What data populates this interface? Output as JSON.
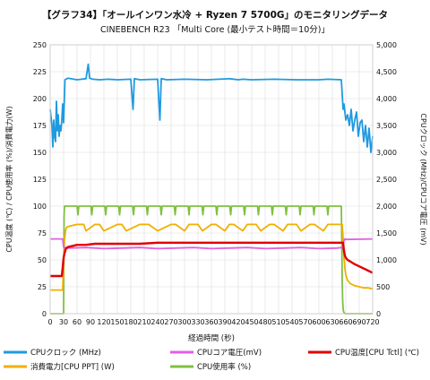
{
  "chart_data": {
    "type": "line",
    "title": "【グラフ34】「オールインワン水冷 + Ryzen 7 5700G」のモニタリングデータ",
    "subtitle": "CINEBENCH R23 「Multi Core (最小テスト時間＝10分)」",
    "xlabel": "経過時間 (秒)",
    "ylabel_left": "CPU温度 (℃) / CPU使用率 (%)/消費電力(W)",
    "ylabel_right": "CPUクロック (MHz)/CPUコア電圧 (mV)",
    "x_ticks": [
      "0",
      "30",
      "60",
      "90",
      "120",
      "150",
      "180",
      "210",
      "240",
      "270",
      "300",
      "330",
      "360",
      "390",
      "420",
      "450",
      "480",
      "510",
      "540",
      "570",
      "600",
      "630",
      "660",
      "690",
      "720"
    ],
    "y_left_ticks": [
      "0",
      "25",
      "50",
      "75",
      "100",
      "125",
      "150",
      "175",
      "200",
      "225",
      "250"
    ],
    "y_right_ticks": [
      "0",
      "500",
      "1,000",
      "1,500",
      "2,000",
      "2,500",
      "3,000",
      "3,500",
      "4,000",
      "4,500",
      "5,000"
    ],
    "xlim": [
      0,
      720
    ],
    "ylim_left": [
      0,
      250
    ],
    "ylim_right": [
      0,
      5000
    ],
    "grid": true,
    "legend_position": "bottom",
    "series": [
      {
        "name": "CPUクロック (MHz)",
        "axis": "right",
        "color": "#1f9ae0",
        "x": [
          0,
          4,
          6,
          8,
          10,
          12,
          14,
          16,
          18,
          20,
          22,
          24,
          26,
          28,
          30,
          33,
          40,
          60,
          70,
          80,
          85,
          88,
          95,
          110,
          130,
          150,
          180,
          185,
          188,
          200,
          240,
          245,
          248,
          260,
          300,
          350,
          400,
          420,
          430,
          450,
          500,
          550,
          600,
          620,
          650,
          654,
          656,
          660,
          664,
          668,
          672,
          676,
          680,
          684,
          688,
          692,
          696,
          700,
          704,
          708,
          712,
          716,
          720
        ],
        "y": [
          3800,
          3500,
          3100,
          3600,
          3300,
          3200,
          3950,
          3400,
          3700,
          3300,
          3500,
          3400,
          3600,
          3900,
          3550,
          4350,
          4380,
          4350,
          4360,
          4370,
          4640,
          4380,
          4360,
          4350,
          4360,
          4350,
          4360,
          3800,
          4370,
          4350,
          4360,
          3600,
          4370,
          4350,
          4360,
          4350,
          4370,
          4350,
          4360,
          4350,
          4360,
          4350,
          4350,
          4360,
          4350,
          3800,
          3900,
          3600,
          3700,
          3500,
          3800,
          3400,
          3600,
          3750,
          3300,
          3550,
          3600,
          3200,
          3500,
          3100,
          3450,
          3000,
          3300
        ]
      },
      {
        "name": "CPUコア電圧(mV)",
        "axis": "right",
        "color": "#e060e0",
        "x": [
          0,
          28,
          30,
          32,
          34,
          36,
          40,
          80,
          120,
          160,
          200,
          240,
          280,
          320,
          360,
          400,
          440,
          480,
          520,
          560,
          600,
          640,
          652,
          654,
          656,
          658,
          660,
          720
        ],
        "y": [
          1390,
          1390,
          1240,
          1220,
          1230,
          1210,
          1220,
          1230,
          1210,
          1220,
          1230,
          1210,
          1220,
          1230,
          1210,
          1220,
          1230,
          1210,
          1220,
          1230,
          1210,
          1220,
          1230,
          1290,
          1360,
          1390,
          1380,
          1390
        ]
      },
      {
        "name": "CPU温度[CPU Tctl] (℃)",
        "axis": "left",
        "color": "#e00000",
        "x": [
          0,
          26,
          28,
          30,
          32,
          34,
          36,
          40,
          50,
          60,
          80,
          100,
          120,
          160,
          200,
          240,
          280,
          320,
          360,
          400,
          440,
          480,
          520,
          560,
          600,
          640,
          650,
          654,
          656,
          658,
          660,
          664,
          668,
          672,
          676,
          680,
          690,
          700,
          710,
          720
        ],
        "y": [
          35,
          35,
          43,
          52,
          56,
          59,
          61,
          62,
          63,
          64,
          64,
          65,
          65,
          65,
          65,
          66,
          66,
          66,
          66,
          66,
          66,
          66,
          66,
          66,
          66,
          66,
          66,
          66,
          58,
          54,
          52,
          50,
          49,
          48,
          47,
          46,
          44,
          42,
          40,
          38
        ]
      },
      {
        "name": "消費電力[CPU PPT] (W)",
        "axis": "left",
        "color": "#f0b000",
        "x": [
          0,
          28,
          30,
          32,
          34,
          36,
          40,
          60,
          75,
          80,
          100,
          110,
          120,
          150,
          160,
          170,
          200,
          220,
          240,
          270,
          280,
          300,
          310,
          330,
          340,
          360,
          370,
          390,
          400,
          410,
          430,
          440,
          460,
          470,
          490,
          500,
          520,
          530,
          550,
          560,
          580,
          590,
          610,
          620,
          640,
          652,
          654,
          656,
          658,
          660,
          664,
          670,
          680,
          690,
          700,
          710,
          720
        ],
        "y": [
          22,
          22,
          48,
          68,
          76,
          80,
          81,
          83,
          83,
          77,
          83,
          83,
          77,
          83,
          83,
          77,
          83,
          83,
          77,
          83,
          83,
          77,
          83,
          83,
          77,
          83,
          83,
          77,
          83,
          83,
          77,
          83,
          83,
          77,
          83,
          83,
          77,
          83,
          83,
          77,
          83,
          83,
          77,
          83,
          83,
          83,
          70,
          52,
          42,
          36,
          31,
          28,
          26,
          25,
          24,
          24,
          23
        ]
      },
      {
        "name": "CPU使用率 (%)",
        "axis": "left",
        "color": "#80c040",
        "x": [
          0,
          28,
          30,
          31,
          32,
          60,
          62,
          64,
          91,
          93,
          95,
          122,
          124,
          126,
          153,
          155,
          157,
          184,
          186,
          188,
          215,
          217,
          219,
          246,
          248,
          250,
          277,
          279,
          281,
          308,
          310,
          312,
          339,
          341,
          343,
          370,
          372,
          374,
          401,
          403,
          405,
          432,
          434,
          436,
          463,
          465,
          467,
          494,
          496,
          498,
          525,
          527,
          529,
          556,
          558,
          560,
          587,
          589,
          591,
          618,
          620,
          622,
          650,
          651,
          652,
          653,
          654,
          655,
          656,
          658,
          720
        ],
        "y": [
          0,
          0,
          0,
          90,
          100,
          100,
          92,
          100,
          100,
          92,
          100,
          100,
          92,
          100,
          100,
          92,
          100,
          100,
          92,
          100,
          100,
          92,
          100,
          100,
          92,
          100,
          100,
          92,
          100,
          100,
          92,
          100,
          100,
          92,
          100,
          100,
          92,
          100,
          100,
          92,
          100,
          100,
          92,
          100,
          100,
          92,
          100,
          100,
          92,
          100,
          100,
          92,
          100,
          100,
          92,
          100,
          100,
          92,
          100,
          100,
          92,
          100,
          100,
          70,
          30,
          12,
          5,
          2,
          1,
          0,
          0
        ]
      }
    ]
  },
  "legend": [
    {
      "label": "CPUクロック (MHz)",
      "color": "#1f9ae0"
    },
    {
      "label": "CPUコア電圧(mV)",
      "color": "#e060e0"
    },
    {
      "label": "CPU温度[CPU Tctl] (℃)",
      "color": "#e00000"
    },
    {
      "label": "消費電力[CPU PPT] (W)",
      "color": "#f0b000"
    },
    {
      "label": "CPU使用率 (%)",
      "color": "#80c040"
    }
  ]
}
